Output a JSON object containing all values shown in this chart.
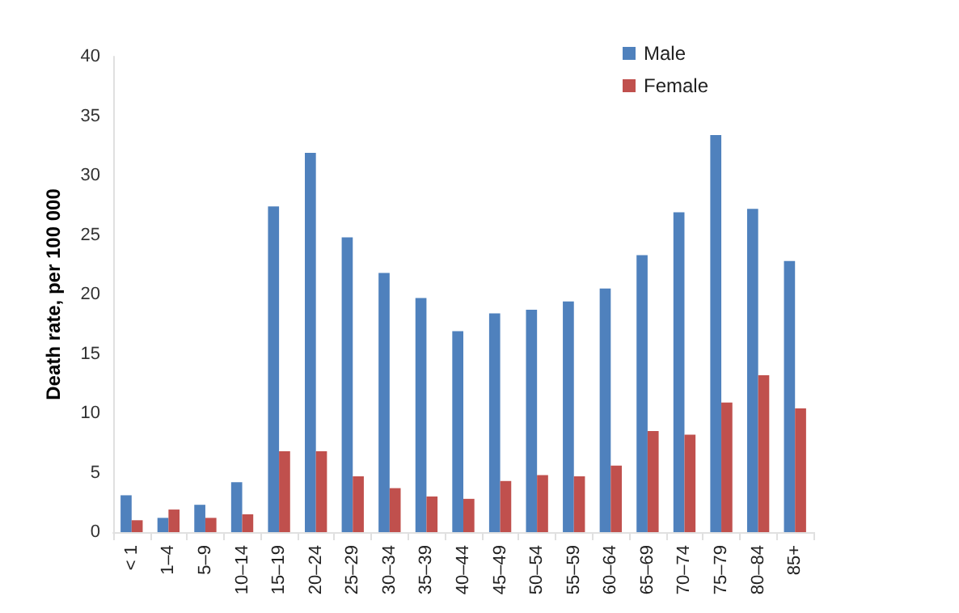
{
  "chart_data": {
    "type": "bar",
    "ylabel": "Death rate, per 100 000",
    "categories": [
      "< 1",
      "1–4",
      "5–9",
      "10–14",
      "15–19",
      "20–24",
      "25–29",
      "30–34",
      "35–39",
      "40–44",
      "45–49",
      "50–54",
      "55–59",
      "60–64",
      "65–69",
      "70–74",
      "75–79",
      "80–84",
      "85+"
    ],
    "series": [
      {
        "name": "Male",
        "color": "#4f81bd",
        "values": [
          3.1,
          1.2,
          2.3,
          4.2,
          27.4,
          31.9,
          24.8,
          21.8,
          19.7,
          16.9,
          18.4,
          18.7,
          19.4,
          20.5,
          23.3,
          26.9,
          33.4,
          27.2,
          22.8
        ]
      },
      {
        "name": "Female",
        "color": "#c0504d",
        "values": [
          1.0,
          1.9,
          1.2,
          1.5,
          6.8,
          6.8,
          4.7,
          3.7,
          3.0,
          2.8,
          4.3,
          4.8,
          4.7,
          5.6,
          8.5,
          8.2,
          10.9,
          13.2,
          10.4
        ]
      }
    ],
    "ylim": [
      0,
      40
    ],
    "yticks": [
      0,
      5,
      10,
      15,
      20,
      25,
      30,
      35,
      40
    ],
    "grid": false,
    "legend": "top right"
  }
}
